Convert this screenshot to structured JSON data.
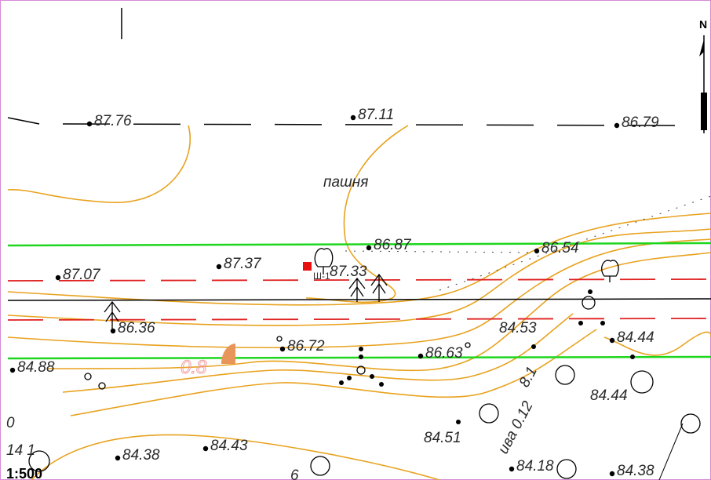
{
  "map": {
    "north": "N",
    "scale": "1:500",
    "land_use": "пашня",
    "well": "Ш-1",
    "slope": "0.8",
    "tree_note": "ива 0.12",
    "tree_diameter": "8.1",
    "fraction_top": "0",
    "fraction_bottom": "14 1",
    "parcel": "6",
    "elevations": [
      "87.76",
      "87.11",
      "86.79",
      "86.87",
      "86.54",
      "87.07",
      "87.37",
      "87.33",
      "86.36",
      "86.72",
      "86.63",
      "84.53",
      "84.44",
      "84.88",
      "84.44",
      "84.51",
      "84.38",
      "84.43",
      "84.18",
      "84.38"
    ]
  }
}
